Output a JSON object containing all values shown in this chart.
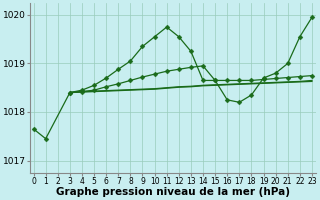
{
  "bg_color": "#c8eef0",
  "line_color": "#1a6b1a",
  "grid_color": "#99ccbb",
  "xlabel": "Graphe pression niveau de la mer (hPa)",
  "ylim": [
    1016.75,
    1020.25
  ],
  "xlim": [
    -0.3,
    23.3
  ],
  "yticks": [
    1017,
    1018,
    1019,
    1020
  ],
  "xlabel_fontsize": 7.5,
  "tick_fontsize": 6.5,
  "s1_x": [
    0,
    1,
    3,
    4,
    5,
    6,
    7,
    8,
    9,
    10,
    11,
    12,
    13,
    14,
    15,
    16,
    17,
    18,
    19,
    20,
    21,
    22,
    23
  ],
  "s1_y": [
    1017.65,
    1017.45,
    1018.4,
    1018.45,
    1018.55,
    1018.7,
    1018.88,
    1019.05,
    1019.35,
    1019.55,
    1019.75,
    1019.55,
    1019.25,
    1018.65,
    1018.65,
    1018.25,
    1018.2,
    1018.35,
    1018.7,
    1018.8,
    1019.0,
    1019.55,
    1019.95
  ],
  "s2_x": [
    3,
    4,
    5,
    6,
    7,
    8,
    9,
    10,
    11,
    12,
    13,
    14,
    15,
    16,
    17,
    18,
    19,
    20,
    21,
    22,
    23
  ],
  "s2_y": [
    1018.4,
    1018.42,
    1018.45,
    1018.52,
    1018.58,
    1018.65,
    1018.72,
    1018.78,
    1018.84,
    1018.88,
    1018.92,
    1018.95,
    1018.65,
    1018.65,
    1018.65,
    1018.65,
    1018.67,
    1018.69,
    1018.71,
    1018.73,
    1018.75
  ],
  "s3_x": [
    3,
    4,
    5,
    6,
    7,
    8,
    9,
    10,
    11,
    12,
    13,
    14,
    15,
    16,
    17,
    18,
    19,
    20,
    21,
    22,
    23
  ],
  "s3_y": [
    1018.4,
    1018.42,
    1018.43,
    1018.44,
    1018.45,
    1018.46,
    1018.47,
    1018.48,
    1018.5,
    1018.52,
    1018.53,
    1018.55,
    1018.56,
    1018.57,
    1018.58,
    1018.59,
    1018.6,
    1018.61,
    1018.62,
    1018.63,
    1018.65
  ],
  "s4_x": [
    3,
    4,
    5,
    6,
    7,
    8,
    9,
    10,
    11,
    12,
    13,
    14,
    15,
    16,
    17,
    18,
    19,
    20,
    21,
    22,
    23
  ],
  "s4_y": [
    1018.4,
    1018.41,
    1018.42,
    1018.43,
    1018.44,
    1018.45,
    1018.46,
    1018.47,
    1018.49,
    1018.51,
    1018.52,
    1018.54,
    1018.55,
    1018.56,
    1018.57,
    1018.58,
    1018.59,
    1018.6,
    1018.61,
    1018.62,
    1018.63
  ]
}
